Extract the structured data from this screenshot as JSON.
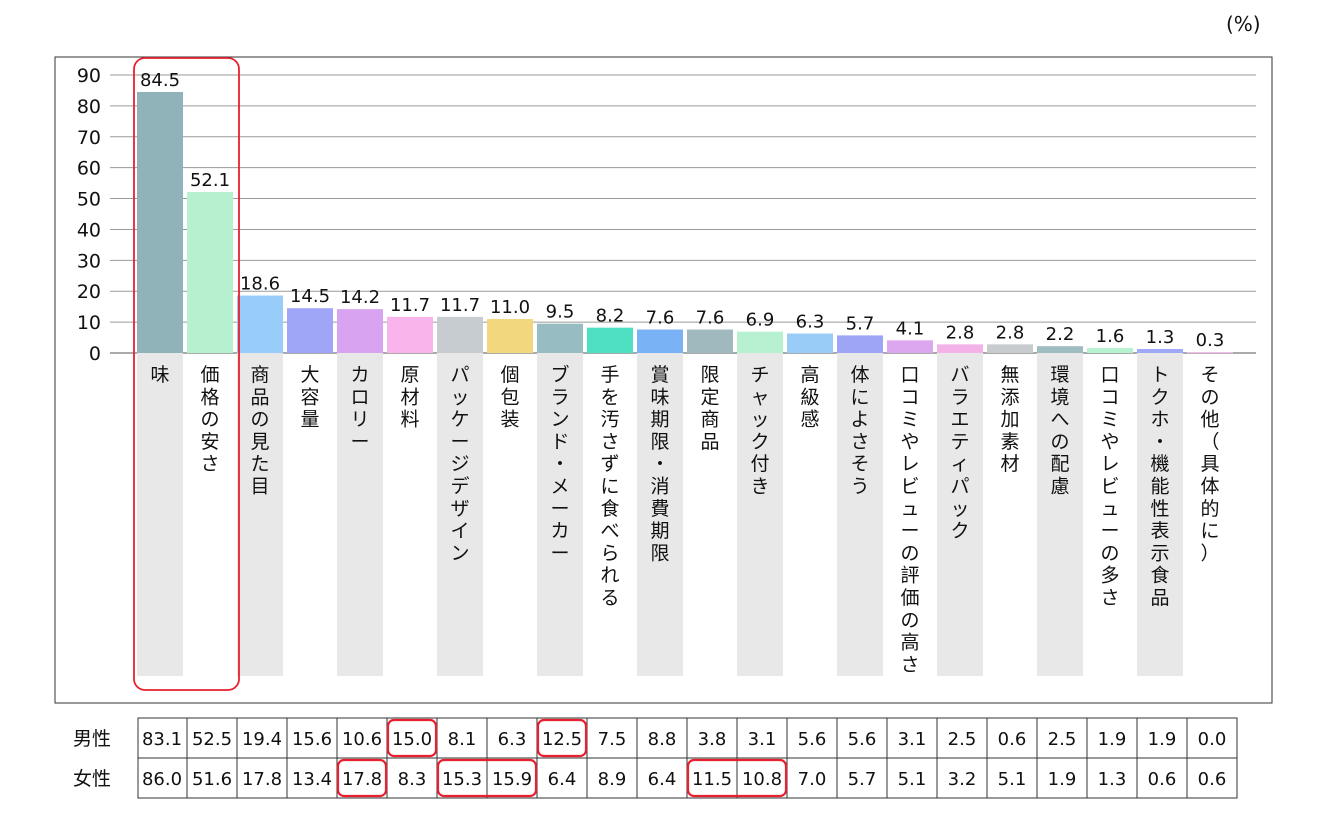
{
  "chart_data": {
    "type": "bar",
    "unit": "(%)",
    "categories": [
      "味",
      "価格の安さ",
      "商品の見た目",
      "大容量",
      "カロリー",
      "原材料",
      "パッケージデザイン",
      "個包装",
      "ブランド・メーカー",
      "手を汚さずに食べられる",
      "賞味期限・消費期限",
      "限定商品",
      "チャック付き",
      "高級感",
      "体によさそう",
      "口コミやレビューの評価の高さ",
      "バラエティパック",
      "無添加素材",
      "環境への配慮",
      "口コミやレビューの多さ",
      "トクホ・機能性表示食品",
      "その他（具体的に）"
    ],
    "values": [
      84.5,
      52.1,
      18.6,
      14.5,
      14.2,
      11.7,
      11.7,
      11.0,
      9.5,
      8.2,
      7.6,
      7.6,
      6.9,
      6.3,
      5.7,
      4.1,
      2.8,
      2.8,
      2.2,
      1.6,
      1.3,
      0.3
    ],
    "value_labels": [
      "84.5",
      "52.1",
      "18.6",
      "14.5",
      "14.2",
      "11.7",
      "11.7",
      "11.0",
      "9.5",
      "8.2",
      "7.6",
      "7.6",
      "6.9",
      "6.3",
      "5.7",
      "4.1",
      "2.8",
      "2.8",
      "2.2",
      "1.6",
      "1.3",
      "0.3"
    ],
    "ylim": [
      0,
      90
    ],
    "yticks": [
      "0",
      "10",
      "20",
      "30",
      "40",
      "50",
      "60",
      "70",
      "80",
      "90"
    ],
    "grid": true,
    "colors": [
      "#8fb3b9",
      "#b6f0cf",
      "#98cdf9",
      "#a0a6f7",
      "#d8a3f0",
      "#f9b5eb",
      "#c6ccd0",
      "#f2d77d",
      "#97bcc2",
      "#4fe0c4",
      "#7ab3f5",
      "#9fb9be",
      "#b8f0d2",
      "#99ccf7",
      "#9ea5f6",
      "#dca7ef",
      "#f4b3e8",
      "#c8cccf",
      "#9fbcc0",
      "#b6f1d0",
      "#9fa9f7",
      "#f4b7e9"
    ],
    "breakdown_table": {
      "rows": [
        {
          "label": "男性",
          "values": [
            "83.1",
            "52.5",
            "19.4",
            "15.6",
            "10.6",
            "15.0",
            "8.1",
            "6.3",
            "12.5",
            "7.5",
            "8.8",
            "3.8",
            "3.1",
            "5.6",
            "5.6",
            "3.1",
            "2.5",
            "0.6",
            "2.5",
            "1.9",
            "1.9",
            "0.0"
          ]
        },
        {
          "label": "女性",
          "values": [
            "86.0",
            "51.6",
            "17.8",
            "13.4",
            "17.8",
            "8.3",
            "15.3",
            "15.9",
            "6.4",
            "8.9",
            "6.4",
            "11.5",
            "10.8",
            "7.0",
            "5.7",
            "5.1",
            "3.2",
            "5.1",
            "1.9",
            "1.3",
            "0.6",
            "0.6"
          ]
        }
      ]
    },
    "highlight_color": "#e8202f"
  }
}
